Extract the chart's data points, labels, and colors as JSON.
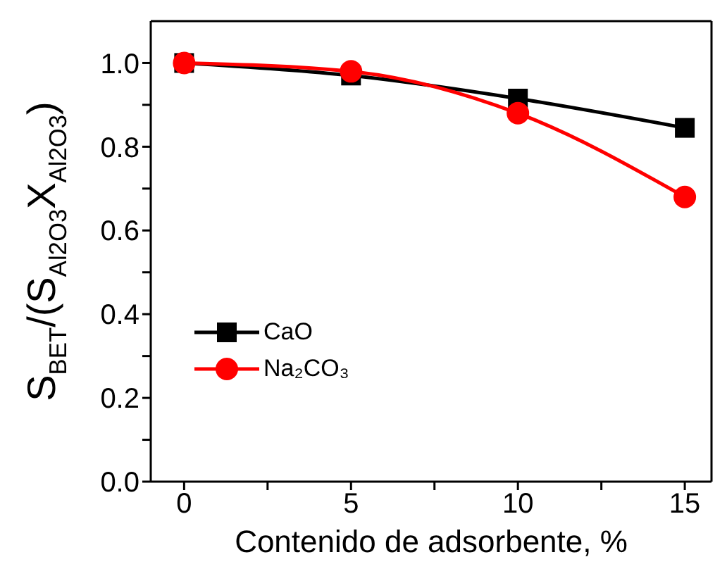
{
  "chart_data": {
    "type": "line",
    "xlabel": "Contenido de adsorbente, %",
    "ylabel": "S$_{BET}$/(S$_{Al2O3}$X$_{Al2O3}$)",
    "x": [
      0,
      5,
      10,
      15
    ],
    "series": [
      {
        "name": "CaO",
        "color": "#000000",
        "marker": "square",
        "values": [
          1.0,
          0.97,
          0.915,
          0.845
        ]
      },
      {
        "name": "Na₂CO₃",
        "color": "#ff0000",
        "marker": "circle",
        "values": [
          1.0,
          0.98,
          0.88,
          0.68
        ]
      }
    ],
    "xlim": [
      -1,
      15.8
    ],
    "xticks": [
      0,
      {
        "value": 2.5,
        "label": null
      },
      5,
      {
        "value": 7.5,
        "label": null
      },
      10,
      {
        "value": 12.5,
        "label": null
      },
      15
    ],
    "ylim": [
      0,
      1.1
    ],
    "yticks": [
      "0.0",
      {
        "value": 0.1,
        "label": null
      },
      0.2,
      {
        "value": 0.3,
        "label": null
      },
      0.4,
      {
        "value": 0.5,
        "label": null
      },
      0.6,
      {
        "value": 0.7,
        "label": null
      },
      0.8,
      {
        "value": 0.9,
        "label": null
      },
      "1.0"
    ],
    "legend": "left",
    "line_style": "solid"
  }
}
